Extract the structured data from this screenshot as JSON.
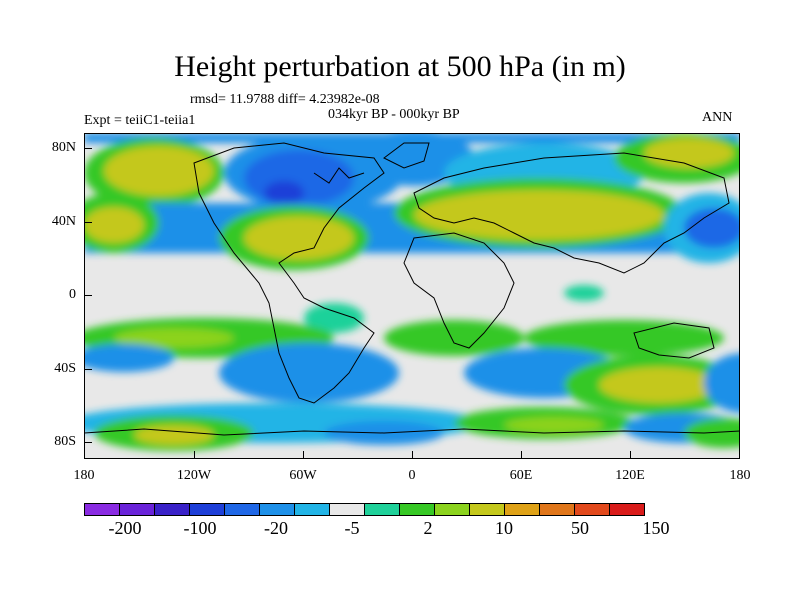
{
  "title": "Height perturbation at 500 hPa (in m)",
  "stats": "rmsd= 11.9788 diff= 4.23982e-08",
  "period": "034kyr BP - 000kyr BP",
  "experiment": "Expt = teiiC1-teiia1",
  "season": "ANN",
  "lat_labels": [
    "80N",
    "40N",
    "0",
    "40S",
    "80S"
  ],
  "lon_labels": [
    "180",
    "120W",
    "60W",
    "0",
    "60E",
    "120E",
    "180"
  ],
  "colorbar": {
    "colors": [
      "#8a2be2",
      "#6a23d9",
      "#3a22c8",
      "#1e3fd8",
      "#1f67e6",
      "#1e90e8",
      "#22b4e6",
      "#e8e8e8",
      "#1fd19a",
      "#36c825",
      "#8cd31e",
      "#c4c81c",
      "#dfa217",
      "#e0761a",
      "#e2491c",
      "#d91b1a"
    ],
    "labels": [
      "-200",
      "-100",
      "-20",
      "-5",
      "2",
      "10",
      "50",
      "150"
    ]
  }
}
